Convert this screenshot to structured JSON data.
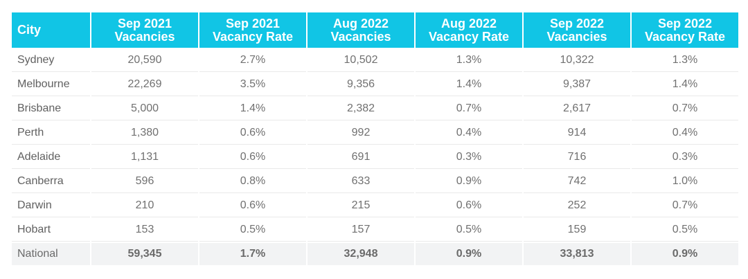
{
  "table": {
    "headers": [
      {
        "line1": "City",
        "line2": ""
      },
      {
        "line1": "Sep 2021",
        "line2": "Vacancies"
      },
      {
        "line1": "Sep 2021",
        "line2": "Vacancy Rate"
      },
      {
        "line1": "Aug 2022",
        "line2": "Vacancies"
      },
      {
        "line1": "Aug 2022",
        "line2": "Vacancy Rate"
      },
      {
        "line1": "Sep 2022",
        "line2": "Vacancies"
      },
      {
        "line1": "Sep 2022",
        "line2": "Vacancy Rate"
      }
    ],
    "rows": [
      [
        "Sydney",
        "20,590",
        "2.7%",
        "10,502",
        "1.3%",
        "10,322",
        "1.3%"
      ],
      [
        "Melbourne",
        "22,269",
        "3.5%",
        "9,356",
        "1.4%",
        "9,387",
        "1.4%"
      ],
      [
        "Brisbane",
        "5,000",
        "1.4%",
        "2,382",
        "0.7%",
        "2,617",
        "0.7%"
      ],
      [
        "Perth",
        "1,380",
        "0.6%",
        "992",
        "0.4%",
        "914",
        "0.4%"
      ],
      [
        "Adelaide",
        "1,131",
        "0.6%",
        "691",
        "0.3%",
        "716",
        "0.3%"
      ],
      [
        "Canberra",
        "596",
        "0.8%",
        "633",
        "0.9%",
        "742",
        "1.0%"
      ],
      [
        "Darwin",
        "210",
        "0.6%",
        "215",
        "0.6%",
        "252",
        "0.7%"
      ],
      [
        "Hobart",
        "153",
        "0.5%",
        "157",
        "0.5%",
        "159",
        "0.5%"
      ]
    ],
    "total": [
      "National",
      "59,345",
      "1.7%",
      "32,948",
      "0.9%",
      "33,813",
      "0.9%"
    ]
  },
  "colors": {
    "header_background": "#11c5e5",
    "header_text": "#ffffff",
    "body_text": "#707070",
    "total_row_background": "#f2f3f4"
  }
}
